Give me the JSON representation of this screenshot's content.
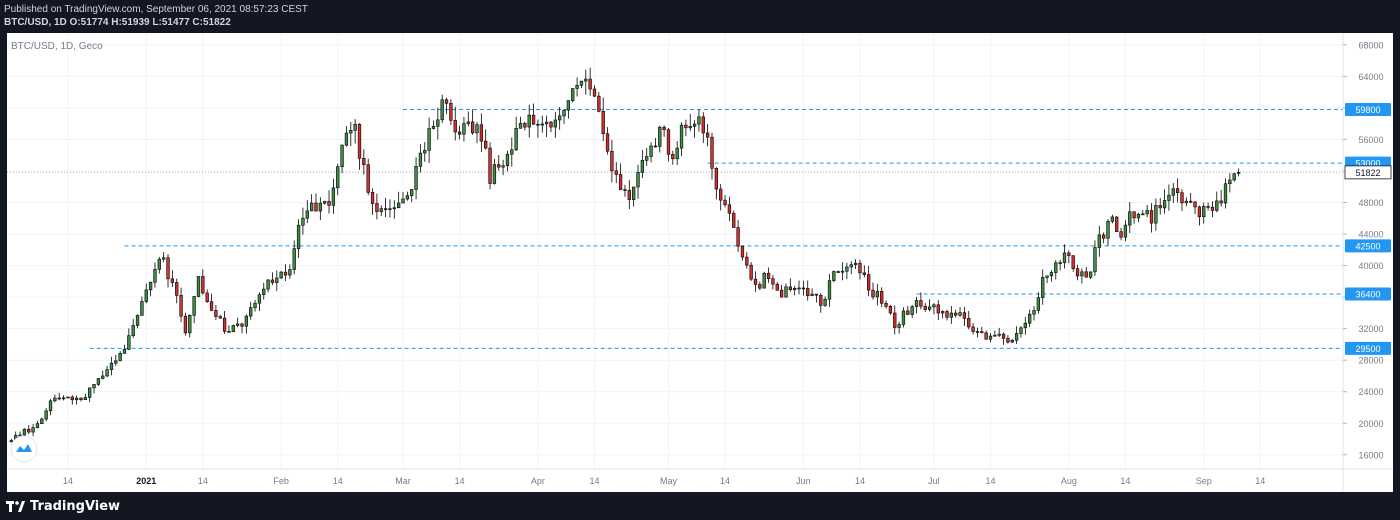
{
  "header": {
    "published": "Published on TradingView.com, September 06, 2021 08:57:23 CEST",
    "ohlc": "BTC/USD, 1D O:51774 H:51939 L:51477 C:51822"
  },
  "footer": {
    "brand": "TradingView",
    "logo_icon": "tradingview-logo-icon"
  },
  "chart_data": {
    "type": "candlestick",
    "legend": "BTC/USD, 1D, Geco",
    "y_ticks": [
      16000,
      20000,
      24000,
      28000,
      32000,
      36000,
      40000,
      44000,
      48000,
      52000,
      56000,
      60000,
      64000,
      68000
    ],
    "ylim": [
      14200,
      69500
    ],
    "x_ticks": [
      {
        "label": "14",
        "day": 13
      },
      {
        "label": "2021",
        "day": 31
      },
      {
        "label": "14",
        "day": 44
      },
      {
        "label": "Feb",
        "day": 62
      },
      {
        "label": "14",
        "day": 75
      },
      {
        "label": "Mar",
        "day": 90
      },
      {
        "label": "14",
        "day": 103
      },
      {
        "label": "Apr",
        "day": 121
      },
      {
        "label": "14",
        "day": 134
      },
      {
        "label": "May",
        "day": 151
      },
      {
        "label": "14",
        "day": 164
      },
      {
        "label": "Jun",
        "day": 182
      },
      {
        "label": "14",
        "day": 195
      },
      {
        "label": "Jul",
        "day": 212
      },
      {
        "label": "14",
        "day": 225
      },
      {
        "label": "Aug",
        "day": 243
      },
      {
        "label": "14",
        "day": 256
      },
      {
        "label": "Sep",
        "day": 274
      },
      {
        "label": "14",
        "day": 287
      }
    ],
    "x_range_days": [
      -1,
      306
    ],
    "levels": [
      {
        "label": "59800",
        "value": 59800,
        "start_day": 90
      },
      {
        "label": "53000",
        "value": 53000,
        "start_day": 160
      },
      {
        "label": "42500",
        "value": 42500,
        "start_day": 26
      },
      {
        "label": "36400",
        "value": 36400,
        "start_day": 208
      },
      {
        "label": "29500",
        "value": 29500,
        "start_day": 18
      }
    ],
    "last_price": {
      "label": "51822",
      "value": 51822
    },
    "anchor_prices": [
      [
        0,
        18200
      ],
      [
        5,
        19300
      ],
      [
        10,
        23500
      ],
      [
        17,
        23400
      ],
      [
        22,
        27000
      ],
      [
        26,
        29300
      ],
      [
        29,
        33000
      ],
      [
        31,
        37000
      ],
      [
        34,
        41500
      ],
      [
        37,
        38000
      ],
      [
        40,
        32000
      ],
      [
        43,
        38500
      ],
      [
        46,
        35000
      ],
      [
        50,
        31500
      ],
      [
        54,
        33500
      ],
      [
        58,
        37000
      ],
      [
        61,
        39000
      ],
      [
        64,
        40000
      ],
      [
        67,
        46500
      ],
      [
        70,
        47500
      ],
      [
        73,
        48500
      ],
      [
        75,
        52000
      ],
      [
        77,
        57000
      ],
      [
        79,
        57000
      ],
      [
        82,
        50000
      ],
      [
        85,
        46500
      ],
      [
        88,
        48300
      ],
      [
        91,
        48500
      ],
      [
        94,
        54000
      ],
      [
        97,
        58500
      ],
      [
        99,
        61000
      ],
      [
        102,
        57500
      ],
      [
        105,
        58200
      ],
      [
        108,
        56000
      ],
      [
        110,
        51500
      ],
      [
        112,
        52000
      ],
      [
        115,
        55000
      ],
      [
        118,
        58500
      ],
      [
        121,
        59000
      ],
      [
        124,
        57000
      ],
      [
        127,
        59000
      ],
      [
        130,
        63000
      ],
      [
        133,
        63000
      ],
      [
        136,
        56000
      ],
      [
        139,
        51000
      ],
      [
        142,
        49000
      ],
      [
        146,
        54800
      ],
      [
        149,
        57000
      ],
      [
        152,
        54000
      ],
      [
        155,
        58000
      ],
      [
        158,
        59000
      ],
      [
        160,
        56000
      ],
      [
        162,
        49500
      ],
      [
        165,
        46500
      ],
      [
        167,
        43000
      ],
      [
        169,
        40000
      ],
      [
        171,
        37000
      ],
      [
        174,
        39000
      ],
      [
        177,
        36500
      ],
      [
        180,
        37500
      ],
      [
        183,
        37000
      ],
      [
        186,
        35500
      ],
      [
        189,
        38500
      ],
      [
        192,
        40000
      ],
      [
        194,
        40500
      ],
      [
        197,
        37500
      ],
      [
        200,
        35500
      ],
      [
        203,
        32500
      ],
      [
        206,
        34500
      ],
      [
        209,
        35500
      ],
      [
        212,
        34500
      ],
      [
        215,
        33500
      ],
      [
        218,
        33500
      ],
      [
        221,
        32000
      ],
      [
        224,
        31300
      ],
      [
        227,
        31500
      ],
      [
        229,
        30000
      ],
      [
        231,
        31000
      ],
      [
        234,
        33500
      ],
      [
        237,
        38000
      ],
      [
        240,
        40000
      ],
      [
        243,
        41500
      ],
      [
        245,
        39500
      ],
      [
        247,
        38200
      ],
      [
        250,
        43000
      ],
      [
        253,
        45500
      ],
      [
        255,
        44200
      ],
      [
        257,
        46500
      ],
      [
        260,
        46300
      ],
      [
        262,
        46200
      ],
      [
        264,
        47300
      ],
      [
        266,
        49500
      ],
      [
        268,
        49500
      ],
      [
        270,
        48500
      ],
      [
        272,
        47200
      ],
      [
        275,
        47200
      ],
      [
        277,
        48000
      ],
      [
        279,
        49700
      ],
      [
        281,
        51774
      ],
      [
        282,
        51822
      ]
    ]
  }
}
